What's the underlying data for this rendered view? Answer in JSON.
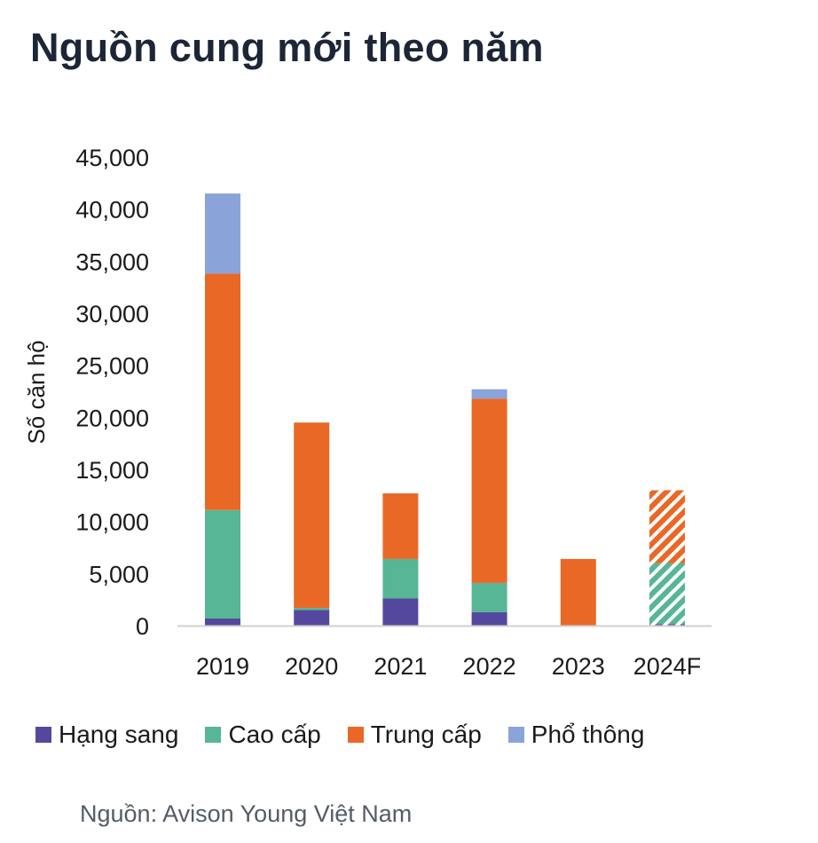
{
  "title": "Nguồn cung mới theo năm",
  "source": "Nguồn: Avison Young Việt Nam",
  "colors": {
    "hang_sang": "#54489e",
    "cao_cap": "#56b695",
    "trung_cap": "#ea6826",
    "pho_thong": "#8aa3d9",
    "axis": "#d0d0d0"
  },
  "chart_data": {
    "type": "bar",
    "stacked": true,
    "title": "Nguồn cung mới theo năm",
    "xlabel": "",
    "ylabel": "Số căn hộ",
    "ylim": [
      0,
      45000
    ],
    "yticks": [
      0,
      5000,
      10000,
      15000,
      20000,
      25000,
      30000,
      35000,
      40000,
      45000
    ],
    "ytick_labels": [
      "0",
      "5,000",
      "10,000",
      "15,000",
      "20,000",
      "25,000",
      "30,000",
      "35,000",
      "40,000",
      "45,000"
    ],
    "categories": [
      "2019",
      "2020",
      "2021",
      "2022",
      "2023",
      "2024F"
    ],
    "forecast_categories": [
      "2024F"
    ],
    "grid": false,
    "legend_position": "bottom",
    "series": [
      {
        "name": "Hạng sang",
        "color": "#54489e",
        "values": [
          700,
          1500,
          2600,
          1300,
          0,
          150
        ]
      },
      {
        "name": "Cao cấp",
        "color": "#56b695",
        "values": [
          10400,
          200,
          3800,
          2800,
          0,
          5850
        ]
      },
      {
        "name": "Trung cấp",
        "color": "#ea6826",
        "values": [
          22700,
          17800,
          6300,
          17700,
          6400,
          7000
        ]
      },
      {
        "name": "Phổ thông",
        "color": "#8aa3d9",
        "values": [
          7700,
          0,
          0,
          900,
          0,
          0
        ]
      }
    ]
  }
}
